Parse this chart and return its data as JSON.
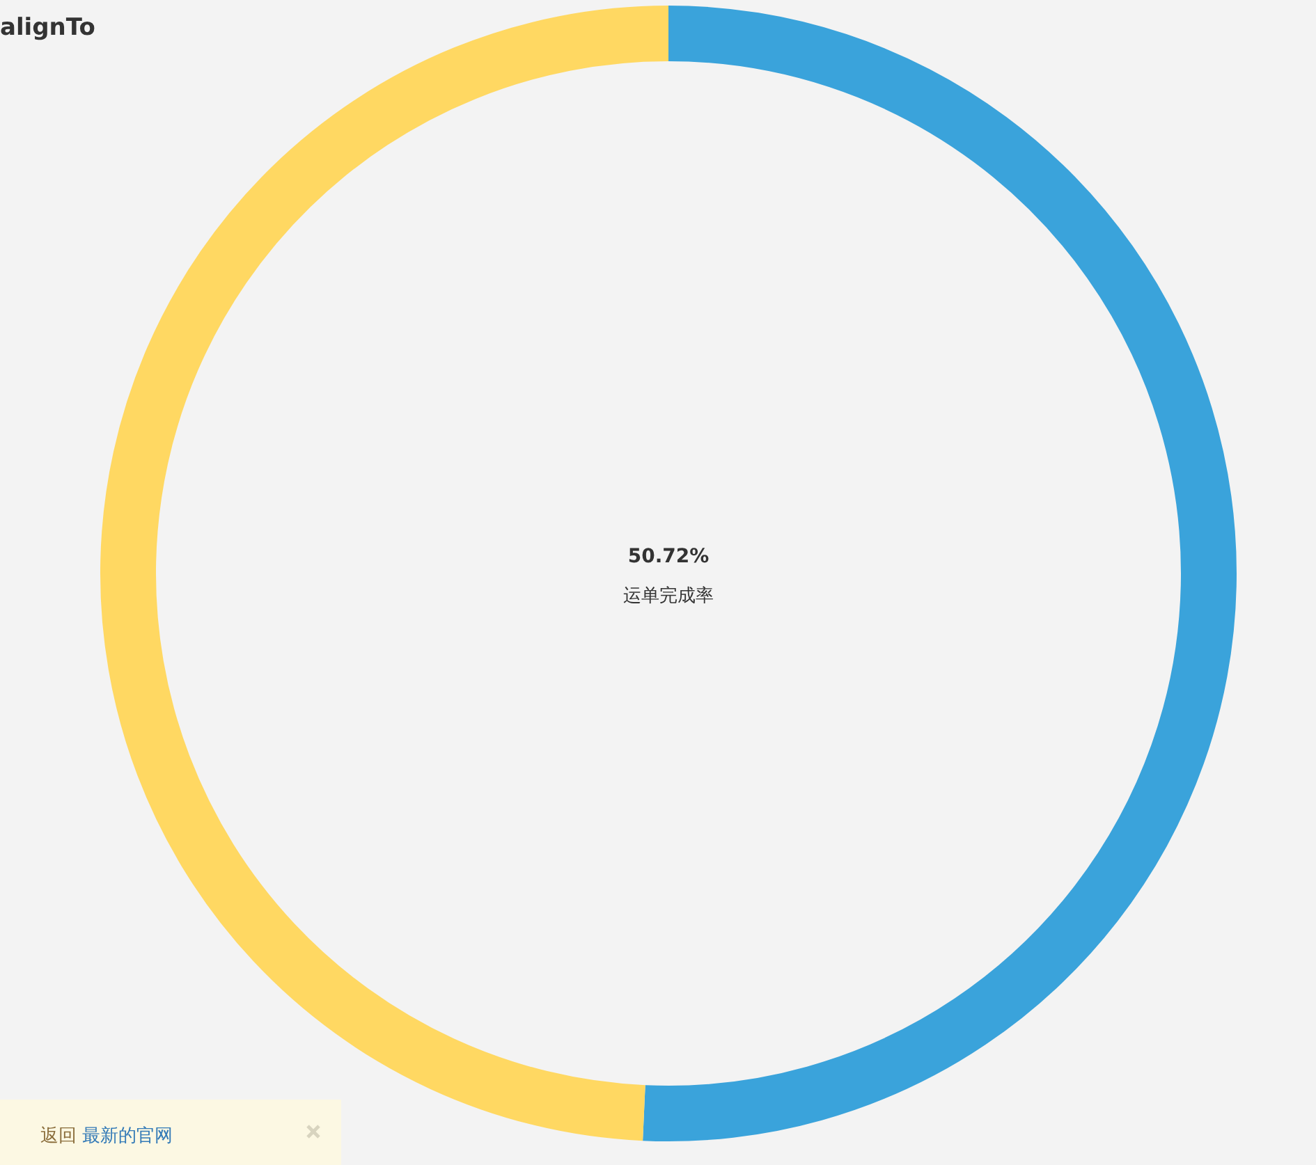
{
  "chart_data": {
    "type": "donut",
    "title": "alignTo",
    "categories": [
      null,
      null
    ],
    "values": [
      50.72,
      49.28
    ],
    "colors": [
      "#3aa3db",
      "#ffd862"
    ],
    "annotations": [
      "50.72%",
      "运单完成率",
      "返回",
      "最新的官网"
    ]
  }
}
